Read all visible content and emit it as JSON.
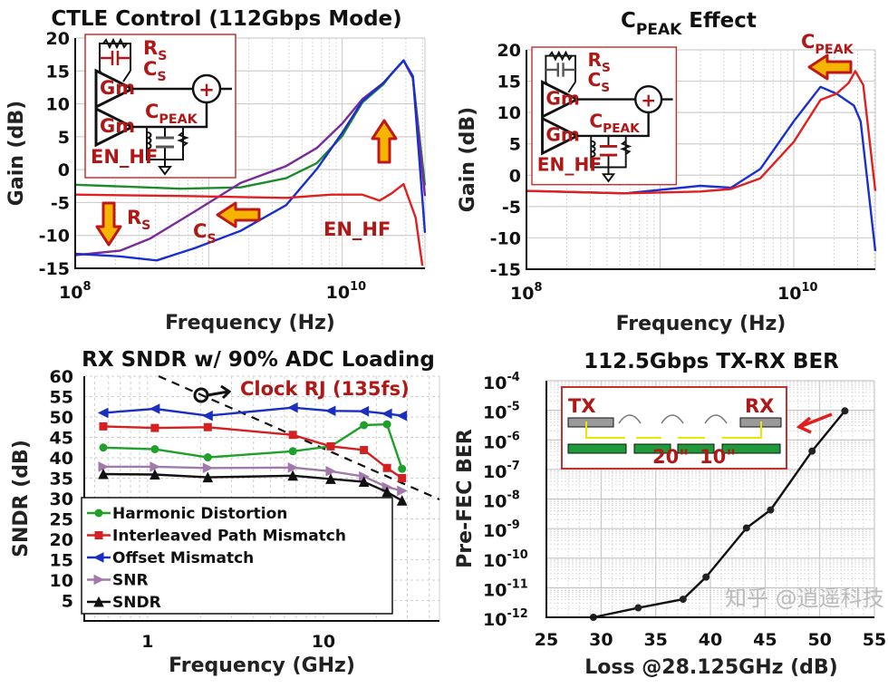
{
  "chart_data": [
    {
      "type": "line",
      "title": "CTLE Control (112Gbps Mode)",
      "xlabel": "Frequency (Hz)",
      "ylabel": "Gain (dB)",
      "xscale": "log",
      "xlim_log10": [
        8,
        10.62
      ],
      "ylim": [
        -15,
        20
      ],
      "xticks": [
        {
          "base": "10",
          "exp": "8",
          "v": 8
        },
        {
          "base": "10",
          "exp": "10",
          "v": 10
        }
      ],
      "yticks": [
        20,
        15,
        10,
        5,
        0,
        -5,
        -10,
        -15
      ],
      "grid": true,
      "series": [
        {
          "color": "#1f8a2a",
          "log10_x": [
            8,
            8.79,
            9.24,
            9.58,
            9.81,
            10.0,
            10.15,
            10.31,
            10.37,
            10.46,
            10.53,
            10.62
          ],
          "y": [
            -2.3,
            -2.9,
            -2.7,
            -1.3,
            1.0,
            5.1,
            10.2,
            13.0,
            14.6,
            16.6,
            13.9,
            -2.4
          ]
        },
        {
          "color": "#7a2a9a",
          "log10_x": [
            8,
            8.34,
            8.56,
            8.9,
            9.24,
            9.58,
            9.81,
            10.0,
            10.15,
            10.31,
            10.46,
            10.53,
            10.62
          ],
          "y": [
            -13,
            -12.3,
            -10.5,
            -6.3,
            -2.0,
            0.55,
            3.3,
            7.0,
            10.7,
            13.2,
            16.6,
            13.9,
            -4.0
          ]
        },
        {
          "color": "#1a2fd0",
          "log10_x": [
            8,
            8.34,
            8.61,
            8.9,
            9.24,
            9.58,
            9.81,
            10.0,
            10.15,
            10.31,
            10.46,
            10.53,
            10.62
          ],
          "y": [
            -12.8,
            -13.2,
            -13.8,
            -11.9,
            -9.3,
            -5.4,
            0.1,
            5.6,
            10.4,
            13.2,
            16.6,
            14.2,
            -9.6
          ]
        },
        {
          "color": "#e02020",
          "log10_x": [
            8,
            8.79,
            9.58,
            9.92,
            10.15,
            10.28,
            10.37,
            10.46,
            10.55,
            10.6
          ],
          "y": [
            -3.8,
            -4.0,
            -4.3,
            -3.8,
            -3.8,
            -4.7,
            -3.6,
            -2.2,
            -7.3,
            -14.6
          ]
        }
      ],
      "annotations": {
        "rs": "R",
        "rs_sub": "S",
        "cs": "C",
        "cs_sub": "S",
        "en_hf": "EN_HF"
      },
      "inset": {
        "rs": "R",
        "rs_sub": "S",
        "cs": "C",
        "cs_sub": "S",
        "gm1": "Gm",
        "gm2": "Gm",
        "cpeak": "C",
        "cpeak_sub": "PEAK",
        "en_hf": "EN_HF",
        "plus": "+"
      }
    },
    {
      "type": "line",
      "title": "C",
      "title_sub": "PEAK",
      "title_rest": " Effect",
      "xlabel": "Frequency (Hz)",
      "ylabel": "Gain (dB)",
      "xscale": "log",
      "xlim_log10": [
        8,
        10.61
      ],
      "ylim": [
        -15,
        20
      ],
      "xticks": [
        {
          "base": "10",
          "exp": "8",
          "v": 8
        },
        {
          "base": "10",
          "exp": "10",
          "v": 10
        }
      ],
      "yticks": [
        20,
        15,
        10,
        5,
        0,
        -5,
        -10,
        -15
      ],
      "grid": true,
      "series": [
        {
          "color": "#1a2fd0",
          "log10_x": [
            8,
            8.74,
            9.3,
            9.53,
            9.75,
            10.0,
            10.2,
            10.32,
            10.45,
            10.5,
            10.61
          ],
          "y": [
            -2.5,
            -2.9,
            -1.7,
            -2.0,
            1.0,
            8.6,
            14.1,
            13.0,
            11.1,
            8.6,
            -12.1
          ]
        },
        {
          "color": "#e02020",
          "log10_x": [
            8,
            8.74,
            9.3,
            9.53,
            9.75,
            10.0,
            10.2,
            10.32,
            10.41,
            10.46,
            10.52,
            10.61
          ],
          "y": [
            -2.5,
            -2.9,
            -2.6,
            -2.2,
            -0.5,
            5.3,
            12.0,
            13.0,
            14.7,
            16.6,
            14.4,
            -2.5
          ]
        }
      ],
      "annotations": {
        "cpeak": "C",
        "cpeak_sub": "PEAK"
      },
      "inset": {
        "rs": "R",
        "rs_sub": "S",
        "cs": "C",
        "cs_sub": "S",
        "gm1": "Gm",
        "gm2": "Gm",
        "cpeak": "C",
        "cpeak_sub": "PEAK",
        "en_hf": "EN_HF",
        "plus": "+"
      }
    },
    {
      "type": "line",
      "title": "RX SNDR w/ 90% ADC Loading",
      "xlabel": "Frequency (GHz)",
      "ylabel": "SNDR (dB)",
      "xscale": "log",
      "ylim": [
        0,
        60
      ],
      "xticks": [
        "1",
        "10"
      ],
      "yticks": [
        60,
        55,
        50,
        45,
        40,
        35,
        30,
        25,
        20,
        15,
        10,
        5
      ],
      "grid": true,
      "legend": "bottom-left",
      "x": [
        0.56,
        1.1,
        2.2,
        6.7,
        11,
        17,
        23,
        28
      ],
      "series": [
        {
          "name": "Harmonic Distortion",
          "color": "#1fa02a",
          "marker": "circle",
          "values": [
            42.5,
            42.1,
            40.1,
            41.6,
            42.8,
            48.0,
            48.2,
            37.3
          ]
        },
        {
          "name": "Interleaved Path Mismatch",
          "color": "#d42020",
          "marker": "square",
          "values": [
            47.7,
            47.3,
            47.5,
            45.6,
            42.8,
            41.9,
            37.5,
            35.0
          ]
        },
        {
          "name": "Offset Mismatch",
          "color": "#1a2fc0",
          "marker": "triangle-left",
          "values": [
            51.0,
            52.0,
            50.3,
            52.3,
            51.5,
            51.4,
            50.8,
            50.3
          ]
        },
        {
          "name": "SNR",
          "color": "#a07aaa",
          "marker": "triangle-right",
          "values": [
            37.8,
            37.8,
            37.5,
            37.6,
            36.7,
            35.4,
            32.8,
            31.9
          ]
        },
        {
          "name": "SNDR",
          "color": "#111111",
          "marker": "triangle-up",
          "values": [
            36.0,
            35.9,
            35.2,
            35.6,
            34.8,
            34.1,
            31.6,
            29.5
          ]
        }
      ],
      "annotation": "Clock RJ (135fs)"
    },
    {
      "type": "line",
      "title": "112.5Gbps TX-RX BER",
      "xlabel": "Loss @28.125GHz (dB)",
      "ylabel": "Pre-FEC BER",
      "yscale": "log",
      "xlim": [
        25,
        55
      ],
      "ylim_log10": [
        -12,
        -4
      ],
      "xticks": [
        "25",
        "30",
        "35",
        "40",
        "45",
        "50",
        "55"
      ],
      "yticks": [
        {
          "base": "10",
          "exp": "-4"
        },
        {
          "base": "10",
          "exp": "-5"
        },
        {
          "base": "10",
          "exp": "-6"
        },
        {
          "base": "10",
          "exp": "-7"
        },
        {
          "base": "10",
          "exp": "-8"
        },
        {
          "base": "10",
          "exp": "-9"
        },
        {
          "base": "10",
          "exp": "-10"
        },
        {
          "base": "10",
          "exp": "-11"
        },
        {
          "base": "10",
          "exp": "-12"
        }
      ],
      "grid": true,
      "series": [
        {
          "color": "#111111",
          "marker": "circle",
          "x": [
            29.3,
            33.4,
            37.5,
            39.6,
            43.3,
            45.5,
            49.3,
            52.3
          ],
          "log10_y": [
            -12,
            -11.68,
            -11.39,
            -10.64,
            -8.98,
            -8.37,
            -6.38,
            -5.02
          ]
        }
      ],
      "inset": {
        "tx": "TX",
        "rx": "RX",
        "len1": "20\"",
        "len2": "10\""
      }
    }
  ],
  "watermark": "知乎 @逍遥科技"
}
